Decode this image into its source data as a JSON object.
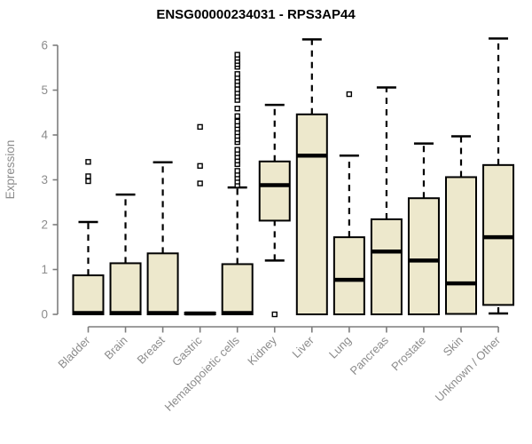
{
  "chart_data": {
    "type": "boxplot",
    "title": "ENSG00000234031 - RPS3AP44",
    "xlabel": "",
    "ylabel": "Expression",
    "ylim": [
      0,
      6.2
    ],
    "yticks": [
      0,
      1,
      2,
      3,
      4,
      5,
      6
    ],
    "grid": false,
    "legend": "none",
    "categories": [
      "Bladder",
      "Brain",
      "Breast",
      "Gastric",
      "Hematopoietic cells",
      "Kidney",
      "Liver",
      "Lung",
      "Pancreas",
      "Prostate",
      "Skin",
      "Unknown / Other"
    ],
    "boxes": [
      {
        "name": "Bladder",
        "low": 0,
        "q1": 0,
        "median": 0.03,
        "q3": 0.87,
        "high": 2.06,
        "outliers": [
          2.97,
          3.08,
          3.4
        ]
      },
      {
        "name": "Brain",
        "low": 0,
        "q1": 0,
        "median": 0.03,
        "q3": 1.14,
        "high": 2.67,
        "outliers": []
      },
      {
        "name": "Breast",
        "low": 0,
        "q1": 0,
        "median": 0.03,
        "q3": 1.36,
        "high": 3.39,
        "outliers": []
      },
      {
        "name": "Gastric",
        "low": 0,
        "q1": 0,
        "median": 0.02,
        "q3": 0.04,
        "high": 0.04,
        "outliers": [
          2.92,
          3.31,
          4.18
        ]
      },
      {
        "name": "Hematopoietic cells",
        "low": 0,
        "q1": 0,
        "median": 0.03,
        "q3": 1.12,
        "high": 2.83,
        "outliers": [
          2.88,
          2.96,
          3.04,
          3.12,
          3.2,
          3.35,
          3.43,
          3.51,
          3.59,
          3.67,
          3.84,
          3.9,
          3.98,
          4.06,
          4.14,
          4.22,
          4.3,
          4.42,
          4.59,
          4.78,
          4.86,
          4.94,
          5.02,
          5.12,
          5.2,
          5.28,
          5.36,
          5.52,
          5.58,
          5.65,
          5.72,
          5.79
        ]
      },
      {
        "name": "Kidney",
        "low": 1.2,
        "q1": 2.09,
        "median": 2.88,
        "q3": 3.41,
        "high": 4.67,
        "outliers": [
          0.0
        ]
      },
      {
        "name": "Liver",
        "low": 0,
        "q1": 0,
        "median": 3.54,
        "q3": 4.46,
        "high": 6.13,
        "outliers": []
      },
      {
        "name": "Lung",
        "low": 0,
        "q1": 0,
        "median": 0.77,
        "q3": 1.72,
        "high": 3.54,
        "outliers": [
          4.91
        ]
      },
      {
        "name": "Pancreas",
        "low": 0,
        "q1": 0,
        "median": 1.4,
        "q3": 2.12,
        "high": 5.06,
        "outliers": []
      },
      {
        "name": "Prostate",
        "low": 0,
        "q1": 0,
        "median": 1.2,
        "q3": 2.59,
        "high": 3.81,
        "outliers": []
      },
      {
        "name": "Skin",
        "low": 0,
        "q1": 0.01,
        "median": 0.69,
        "q3": 3.06,
        "high": 3.97,
        "outliers": []
      },
      {
        "name": "Unknown / Other",
        "low": 0.02,
        "q1": 0.21,
        "median": 1.72,
        "q3": 3.33,
        "high": 6.15,
        "outliers": []
      }
    ]
  },
  "colors": {
    "box_fill": "#EDE8CC",
    "box_border": "#000000",
    "median": "#000000",
    "whisker": "#000000",
    "outlier_stroke": "#000000",
    "outlier_fill": "#ffffff",
    "axis_line": "#7d7d7d",
    "axis_text": "#8c8c8c",
    "title_text": "#000000",
    "background": "#ffffff"
  }
}
